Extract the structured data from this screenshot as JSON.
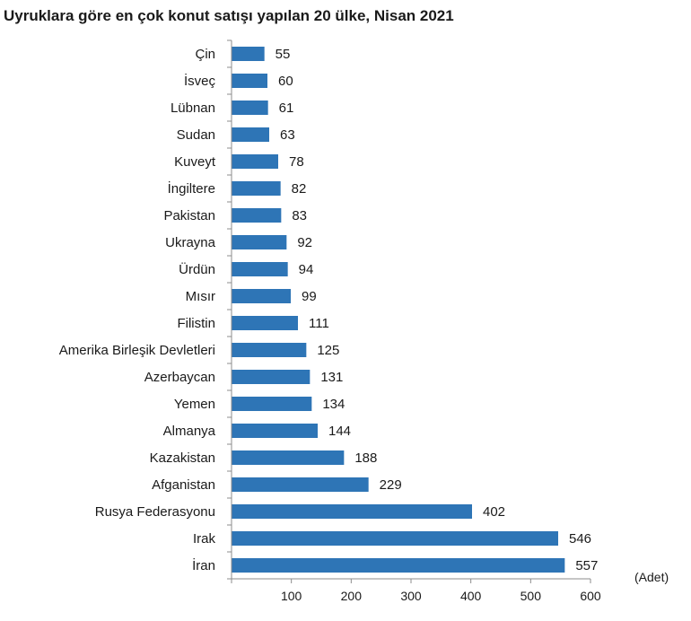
{
  "chart_data": {
    "type": "bar",
    "orientation": "horizontal",
    "title": "Uyruklara göre en çok konut satışı yapılan 20 ülke, Nisan 2021",
    "unit_label": "(Adet)",
    "categories": [
      "Çin",
      "İsveç",
      "Lübnan",
      "Sudan",
      "Kuveyt",
      "İngiltere",
      "Pakistan",
      "Ukrayna",
      "Ürdün",
      "Mısır",
      "Filistin",
      "Amerika Birleşik Devletleri",
      "Azerbaycan",
      "Yemen",
      "Almanya",
      "Kazakistan",
      "Afganistan",
      "Rusya Federasyonu",
      "Irak",
      "İran"
    ],
    "values": [
      55,
      60,
      61,
      63,
      78,
      82,
      83,
      92,
      94,
      99,
      111,
      125,
      131,
      134,
      144,
      188,
      229,
      402,
      546,
      557
    ],
    "xlim": [
      0,
      600
    ],
    "xticks": [
      100,
      200,
      300,
      400,
      500,
      600
    ],
    "grid": false,
    "bar_color": "#2e75b6"
  }
}
